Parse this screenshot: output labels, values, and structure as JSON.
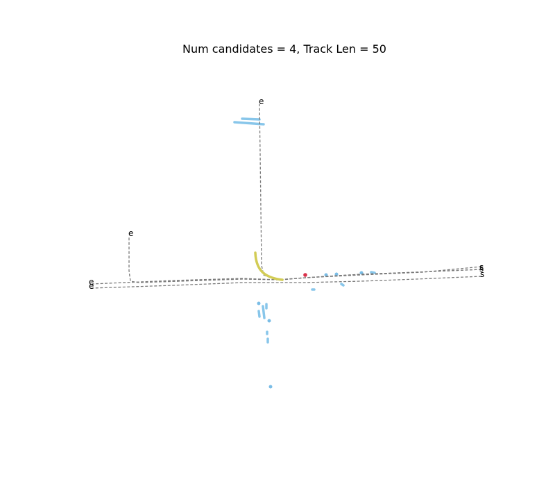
{
  "title": "Num candidates = 4, Track Len = 50",
  "endpoint_labels": {
    "start": "s",
    "end": "e"
  },
  "colors": {
    "candidate_trajectory": "#7a7a7a",
    "observed_history": "#d2cc55",
    "map_elements": "#7cc0e8",
    "agent": "#d9304a"
  }
}
